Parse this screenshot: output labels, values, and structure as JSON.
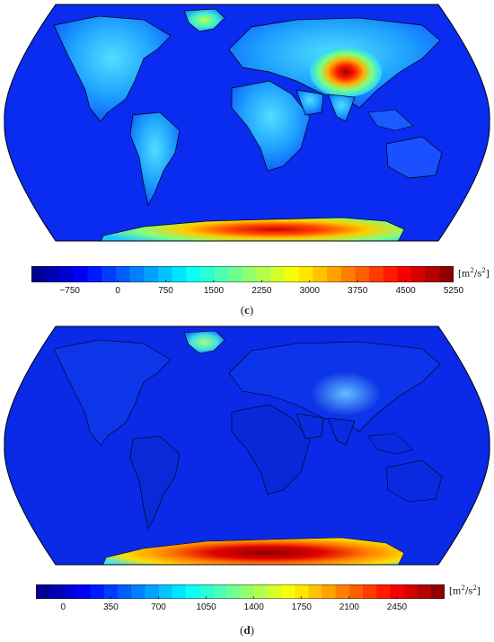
{
  "panels": [
    {
      "label_prefix": "(",
      "label_letter": "c",
      "label_suffix": ")",
      "unit_text": "[m",
      "unit_sup1": "2",
      "unit_mid": "/s",
      "unit_sup2": "2",
      "unit_close": "]",
      "colorbar_ticks": [
        "−750",
        "0",
        "750",
        "1500",
        "2250",
        "3000",
        "3750",
        "4500",
        "5250"
      ],
      "colorbar_values": [
        -750,
        0,
        750,
        1500,
        2250,
        3000,
        3750,
        4500,
        5250
      ],
      "colorbar_range": [
        -1350,
        5250
      ],
      "hotspots": [
        "tibetan-plateau",
        "antarctica",
        "greenland",
        "rocky-mountains",
        "andes",
        "east-africa"
      ]
    },
    {
      "label_prefix": "(",
      "label_letter": "d",
      "label_suffix": ")",
      "unit_text": "[m",
      "unit_sup1": "2",
      "unit_mid": "/s",
      "unit_sup2": "2",
      "unit_close": "]",
      "colorbar_ticks": [
        "0",
        "350",
        "700",
        "1050",
        "1400",
        "1750",
        "2100",
        "2450"
      ],
      "colorbar_values": [
        0,
        350,
        700,
        1050,
        1400,
        1750,
        2100,
        2450
      ],
      "colorbar_range": [
        -200,
        2800
      ],
      "hotspots": [
        "antarctica",
        "greenland",
        "tibetan-plateau"
      ]
    }
  ],
  "colormap": "jet",
  "projection": "robinson",
  "colors": {
    "ocean": "#0a2cf0",
    "coast": "#000000"
  }
}
